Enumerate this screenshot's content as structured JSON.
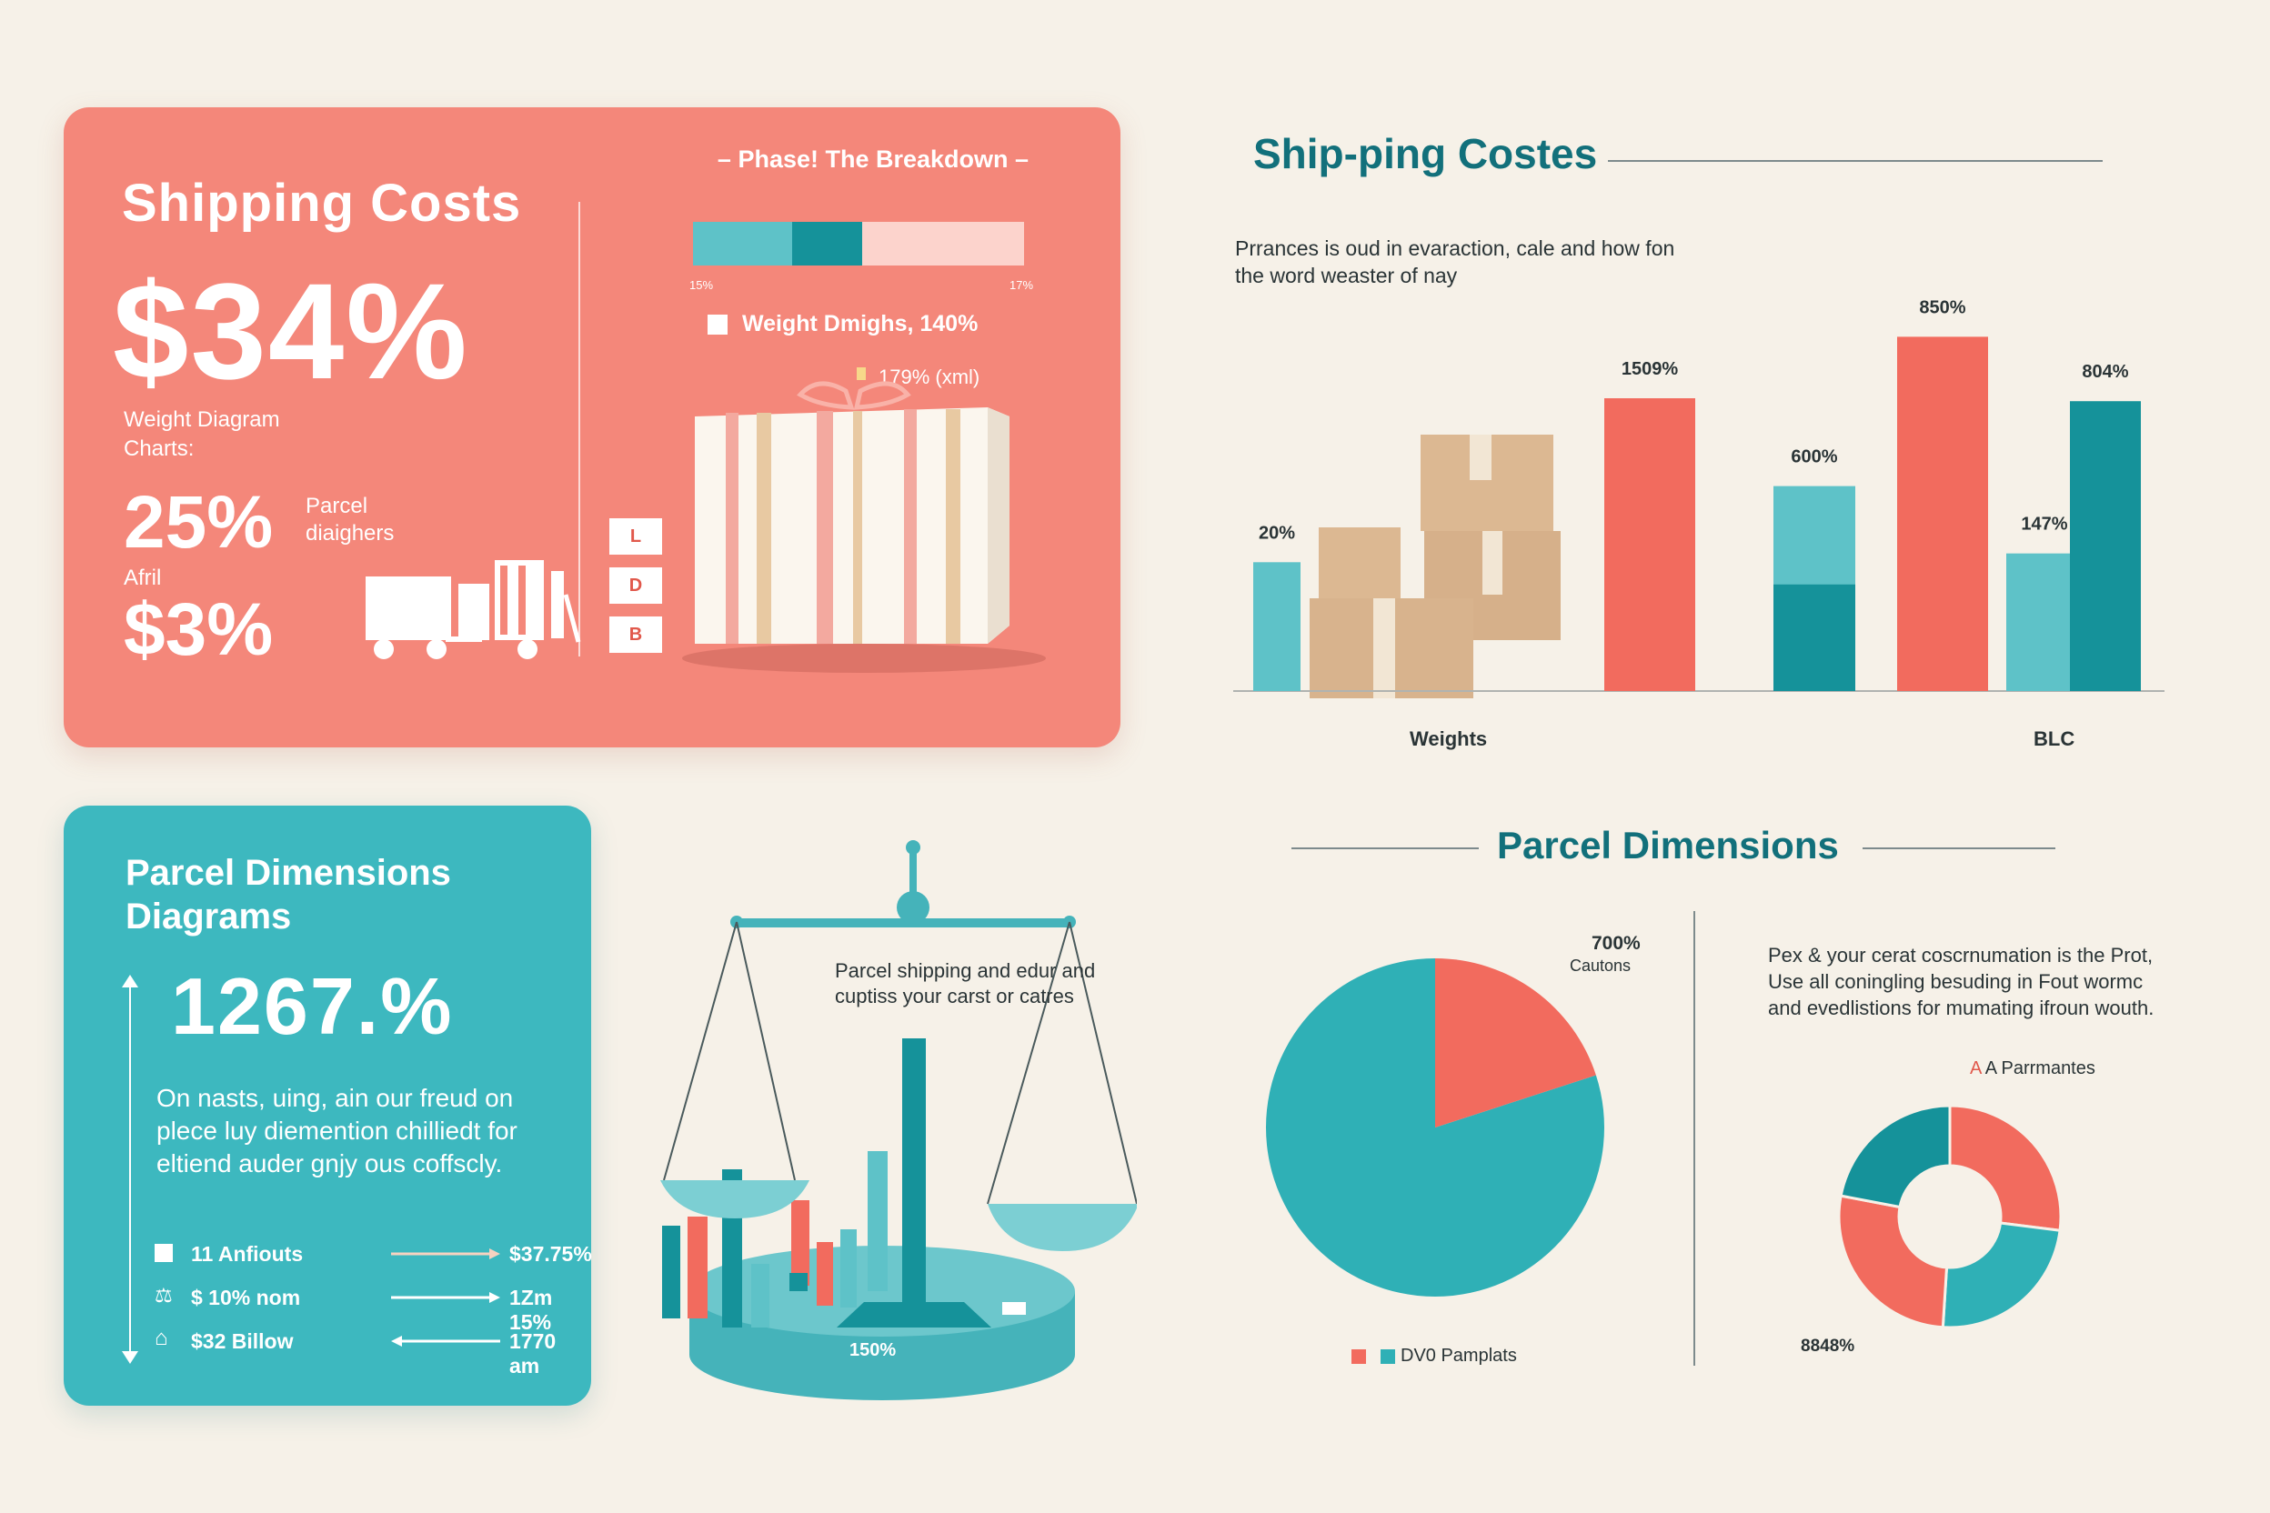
{
  "colors": {
    "coral": "#f4877a",
    "coral_dark": "#f26b5e",
    "teal": "#3db8bf",
    "teal_dark": "#15929a",
    "teal_light": "#5ec2c8",
    "cream": "#f6f1e8",
    "title_teal": "#12707b",
    "box_tan": "#d9b48c"
  },
  "shipping_card": {
    "title": "Shipping Costs",
    "big_value": "$34%",
    "subtitle": "Weight Diagram Charts:",
    "stat1_value": "25%",
    "stat1_label": "Parcel diaighers",
    "stat2_label": "Afril",
    "stat2_value": "$3%",
    "phase_title": "Phase! The Breakdown",
    "breakdown_bar": {
      "segments": [
        0.3,
        0.21,
        0.49
      ],
      "colors": [
        "#5ec2c8",
        "#15929a",
        "#fcd3cc"
      ]
    },
    "tick_left": "15%",
    "tick_right": "17%",
    "legend_text": "Weight Dmighs, 140%",
    "note": "179% (xml)",
    "size_chips": [
      "L",
      "D",
      "B"
    ]
  },
  "shipping_chart": {
    "title": "Ship-ping Costes",
    "description": "Prrances is oud in evaraction, cale and how fon the word weaster of nay",
    "x_label_left": "Weights",
    "x_label_right": "BLC"
  },
  "chart_data": [
    {
      "type": "bar",
      "title": "Ship-ping Costes",
      "data_labels": [
        "20%",
        "1509%",
        "600%",
        "850%",
        "147%",
        "804%"
      ],
      "values": [
        20,
        1509,
        600,
        850,
        147,
        804
      ],
      "bar_heights_fraction": [
        0.44,
        1.0,
        0.7,
        1.21,
        0.47,
        0.99
      ],
      "colors": [
        "#5ec2c8",
        "#f26b5e",
        "#5ec2c8",
        "#f26b5e",
        "#5ec2c8",
        "#15929a"
      ],
      "xlabel_left": "Weights",
      "xlabel_right": "BLC"
    },
    {
      "type": "pie",
      "title": "Parcel Dimensions",
      "slices": [
        {
          "label": "DV0 Pamplats",
          "value": 80,
          "color": "#2fb0b6"
        },
        {
          "label": "700%",
          "value": 20,
          "color": "#f26b5e"
        }
      ]
    },
    {
      "type": "pie",
      "title": "A Parrmantes",
      "donut": true,
      "slices": [
        {
          "label": "A Parrmantes",
          "value": 27,
          "color": "#f26b5e"
        },
        {
          "label": "",
          "value": 24,
          "color": "#2fb0b6"
        },
        {
          "label": "",
          "value": 27,
          "color": "#f26b5e"
        },
        {
          "label": "",
          "value": 22,
          "color": "#15929a"
        }
      ]
    }
  ],
  "teal_card": {
    "title": "Parcel Dimensions Diagrams",
    "big_value": "1267.%",
    "body": "On nasts, uing, ain our freud on plece luy diemention chilliedt for eltiend auder gnjy ous coffscly.",
    "rows": [
      {
        "icon": "square-icon",
        "label": "11 Anfiouts",
        "value": "$37.75%",
        "dir": "right"
      },
      {
        "icon": "basket-icon",
        "label": "$ 10% nom",
        "value": "1Zm 15%",
        "dir": "right"
      },
      {
        "icon": "home-icon",
        "label": "$32 Billow",
        "value": "1770 am",
        "dir": "left"
      }
    ]
  },
  "scale_panel": {
    "text": "Parcel shipping and edur and cuptiss your carst or catres",
    "base_label": "150%"
  },
  "parcel_dimensions": {
    "title": "Parcel Dimensions",
    "pie_top_value": "700%",
    "pie_top_label": "Cautons",
    "legend_label": "DV0 Pamplats",
    "description": "Pex & your cerat coscrnumation is the Prot, Use all coningling besuding in Fout wormc and evedlistions for mumating ifroun wouth.",
    "donut_label": "A Parrmantes",
    "donut_value": "8848%"
  }
}
